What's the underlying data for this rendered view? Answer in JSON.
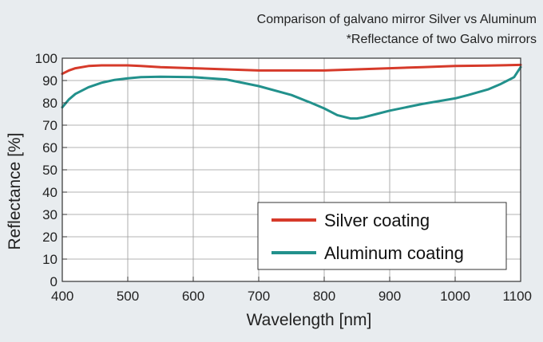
{
  "chart_data": {
    "type": "line",
    "title": "Comparison of galvano mirror Silver vs Aluminum",
    "subtitle": "*Reflectance of two Galvo mirrors",
    "xlabel": "Wavelength [nm]",
    "ylabel": "Reflectance [%]",
    "xlim": [
      400,
      1100
    ],
    "ylim": [
      0,
      100
    ],
    "x_ticks": [
      "400",
      "500",
      "600",
      "700",
      "800",
      "900",
      "1000",
      "1100"
    ],
    "y_ticks": [
      "0",
      "10",
      "20",
      "30",
      "40",
      "50",
      "60",
      "70",
      "80",
      "90",
      "100"
    ],
    "grid": true,
    "legend_position": "bottom-right",
    "colors": {
      "silver": "#d63a2a",
      "aluminum": "#22918c"
    },
    "series": [
      {
        "name": "Silver coating",
        "x": [
          400,
          410,
          420,
          440,
          460,
          480,
          500,
          520,
          550,
          600,
          650,
          700,
          750,
          800,
          850,
          900,
          950,
          1000,
          1050,
          1100
        ],
        "values": [
          93,
          94.5,
          95.5,
          96.5,
          96.8,
          96.8,
          96.8,
          96.5,
          96,
          95.5,
          95,
          94.5,
          94.5,
          94.5,
          95,
          95.5,
          96,
          96.5,
          96.7,
          97
        ]
      },
      {
        "name": "Aluminum coating",
        "x": [
          400,
          410,
          420,
          440,
          460,
          480,
          500,
          520,
          550,
          600,
          650,
          700,
          750,
          780,
          800,
          820,
          840,
          850,
          860,
          880,
          900,
          950,
          1000,
          1020,
          1050,
          1070,
          1080,
          1090,
          1100
        ],
        "values": [
          78,
          81.5,
          84,
          87,
          89,
          90.3,
          91,
          91.5,
          91.7,
          91.5,
          90.5,
          87.5,
          83.5,
          80,
          77.5,
          74.5,
          73,
          73,
          73.5,
          75,
          76.5,
          79.5,
          82,
          83.5,
          86,
          88.5,
          90,
          91.5,
          96
        ]
      }
    ]
  }
}
